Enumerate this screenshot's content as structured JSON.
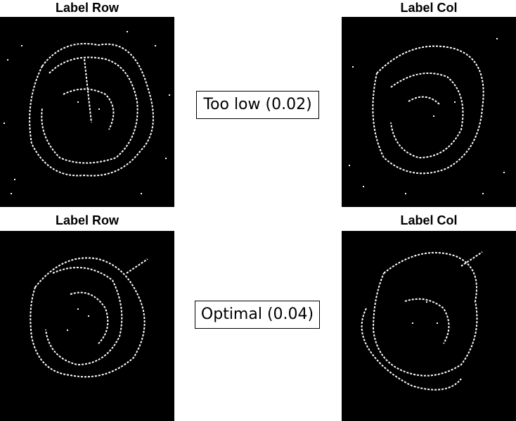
{
  "rows": [
    {
      "left_title": "Label Row",
      "right_title": "Label Col",
      "callout": "Too low (0.02)"
    },
    {
      "left_title": "Label Row",
      "right_title": "Label Col",
      "callout": "Optimal (0.04)"
    }
  ],
  "colors": {
    "image_background": "#000000",
    "edge_pixels": "#ffffff"
  }
}
